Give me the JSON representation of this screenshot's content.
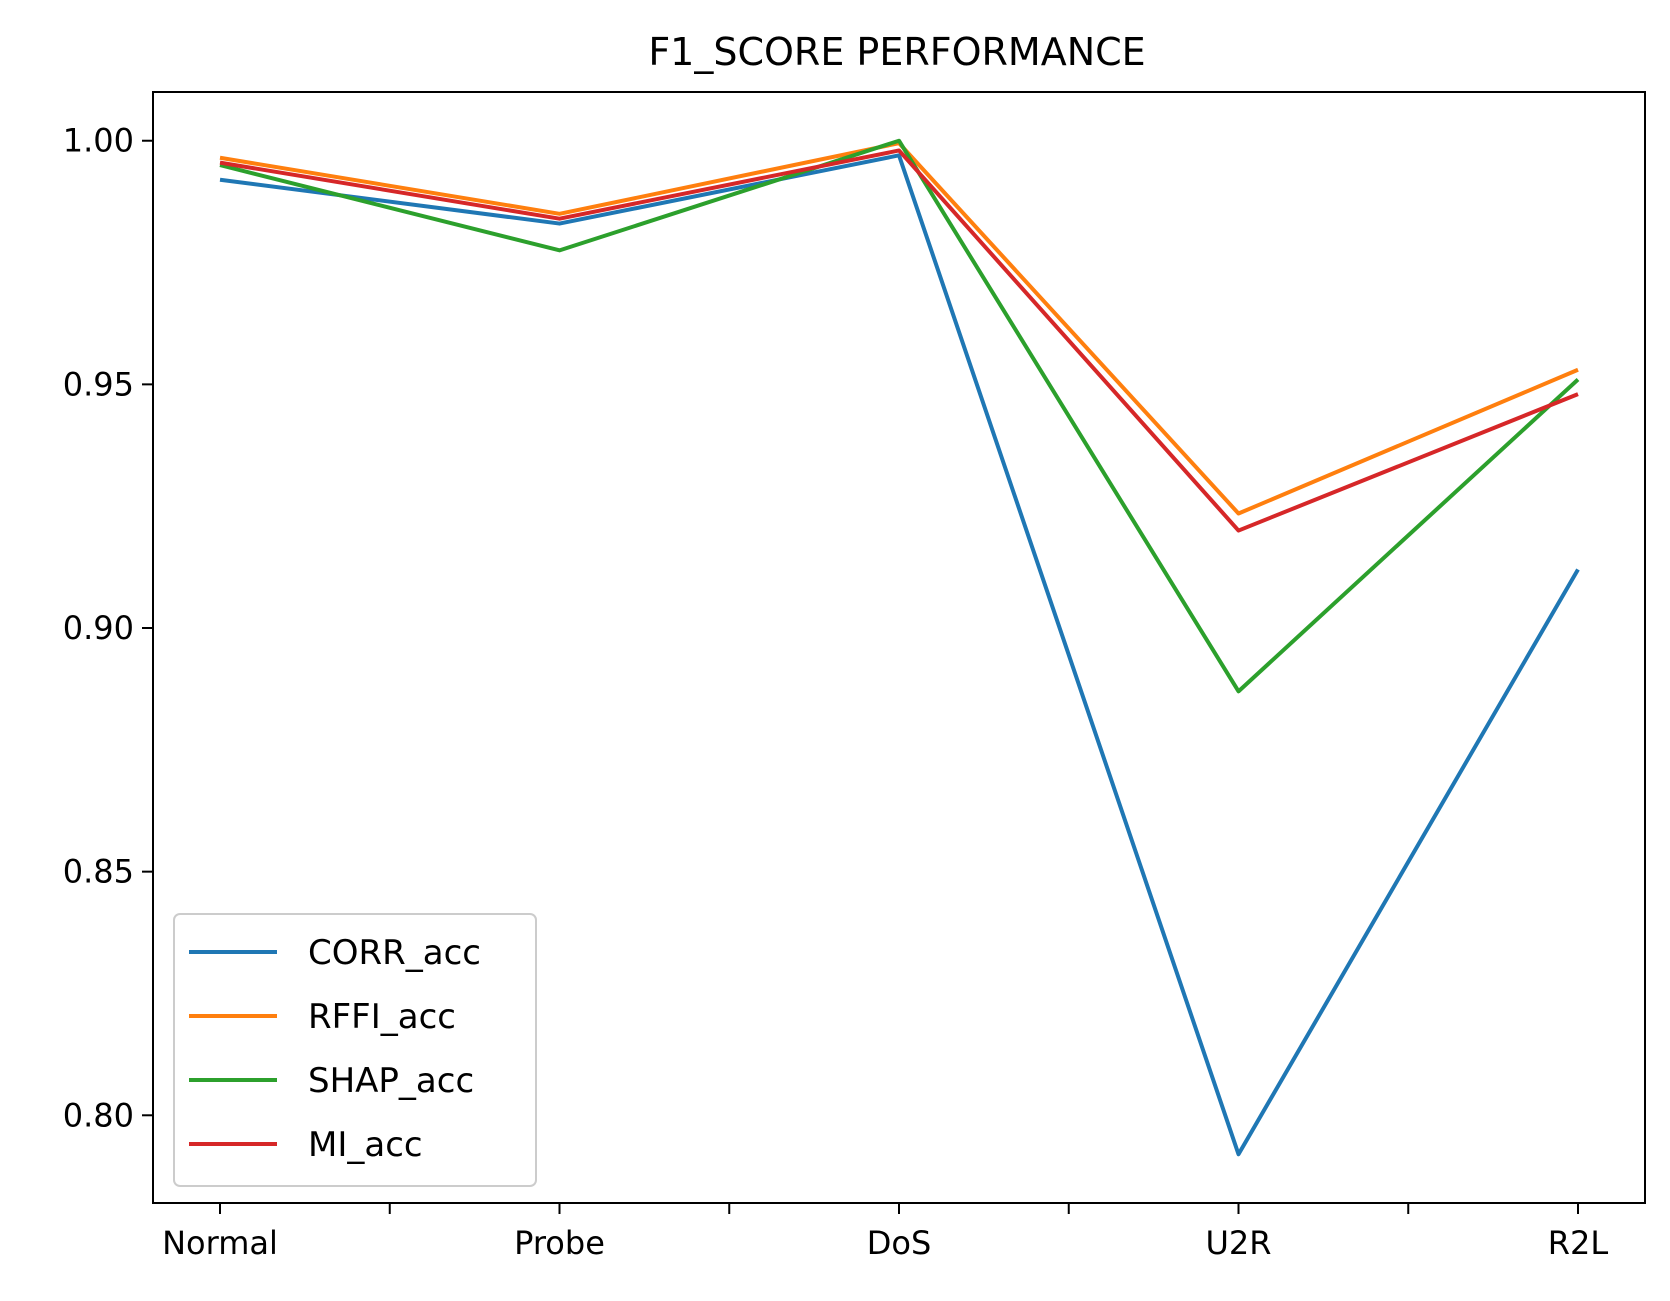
{
  "chart_data": {
    "type": "line",
    "title": "F1_SCORE PERFORMANCE",
    "xlabel": "",
    "ylabel": "",
    "categories": [
      "Normal",
      "Probe",
      "DoS",
      "U2R",
      "R2L"
    ],
    "minor_x_ticks": true,
    "ylim": [
      0.782,
      1.01
    ],
    "yticks": [
      0.8,
      0.85,
      0.9,
      0.95,
      1.0
    ],
    "ytick_labels": [
      "0.80",
      "0.85",
      "0.90",
      "0.95",
      "1.00"
    ],
    "grid": false,
    "legend_position": "lower-left",
    "series": [
      {
        "name": "CORR_acc",
        "color": "#1f77b4",
        "values": [
          0.992,
          0.983,
          0.997,
          0.792,
          0.912
        ]
      },
      {
        "name": "RFFI_acc",
        "color": "#ff7f0e",
        "values": [
          0.9965,
          0.985,
          0.9995,
          0.9235,
          0.953
        ]
      },
      {
        "name": "SHAP_acc",
        "color": "#2ca02c",
        "values": [
          0.995,
          0.9775,
          1.0,
          0.887,
          0.951
        ]
      },
      {
        "name": "MI_acc",
        "color": "#d62728",
        "values": [
          0.9955,
          0.984,
          0.998,
          0.92,
          0.948
        ]
      }
    ]
  }
}
